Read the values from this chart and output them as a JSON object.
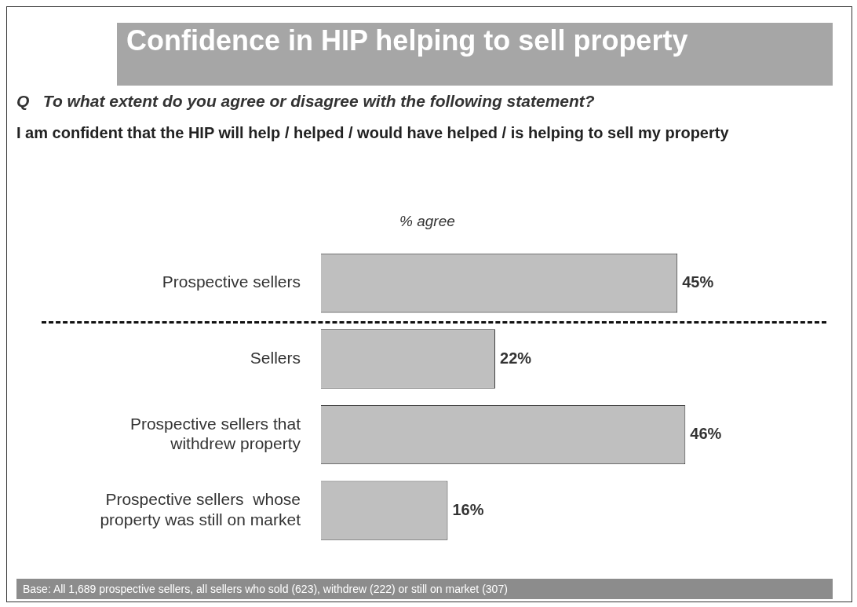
{
  "chart_data": {
    "type": "bar",
    "orientation": "horizontal",
    "title": "Confidence in HIP helping to sell property",
    "subtitle": "Q   To what extent do you agree or disagree with the following statement?",
    "xlabel": "% agree",
    "annotations": [
      "I am confident that the HIP will help / helped / would have helped / is helping to sell my property",
      "Base: All 1,689 prospective sellers, all sellers who sold (623), withdrew (222) or still on market (307)"
    ],
    "categories": [
      "Prospective sellers",
      "Sellers",
      "Prospective sellers that withdrew property",
      "Prospective sellers  whose property was still on market"
    ],
    "values": [
      45,
      22,
      46,
      16
    ],
    "value_labels": [
      "45%",
      "22%",
      "46%",
      "16%"
    ],
    "color": "#bfbfbf",
    "legend": false
  }
}
